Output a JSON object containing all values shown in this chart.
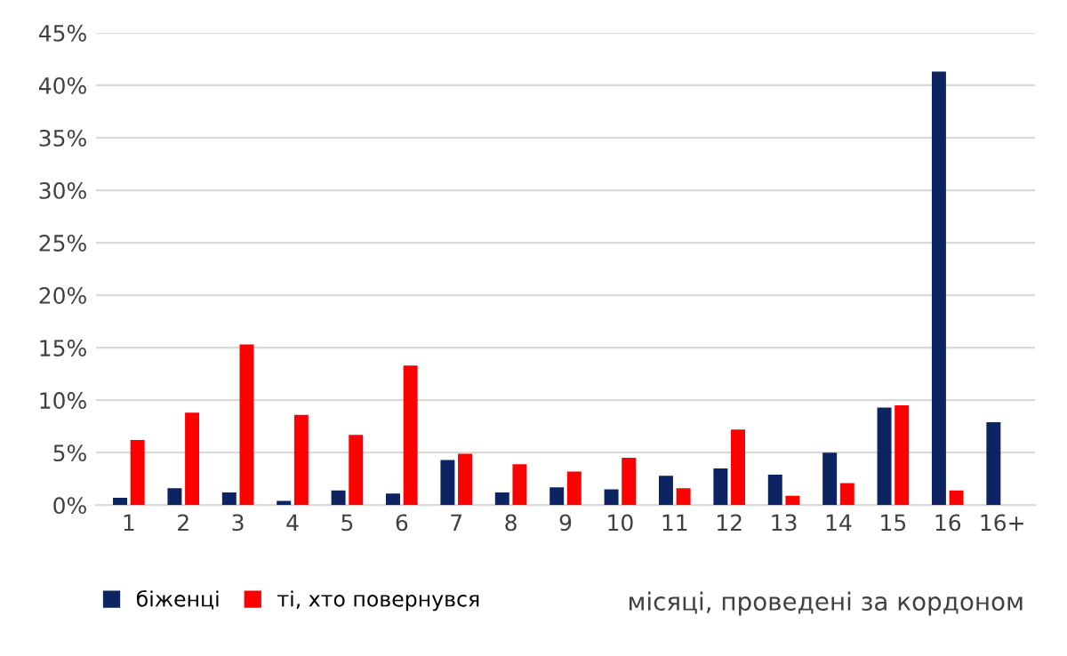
{
  "chart_data": {
    "type": "bar",
    "xlabel": "місяці, проведені за кордоном",
    "categories": [
      "1",
      "2",
      "3",
      "4",
      "5",
      "6",
      "7",
      "8",
      "9",
      "10",
      "11",
      "12",
      "13",
      "14",
      "15",
      "16",
      "16+"
    ],
    "series": [
      {
        "name": "біженці",
        "color": "#0c2461",
        "values": [
          0.7,
          1.6,
          1.2,
          0.4,
          1.4,
          1.1,
          4.3,
          1.2,
          1.7,
          1.5,
          2.8,
          3.5,
          2.9,
          5.0,
          9.3,
          41.3,
          7.9
        ]
      },
      {
        "name": "ті, хто повернувся",
        "color": "#ff0000",
        "values": [
          6.2,
          8.8,
          15.3,
          8.6,
          6.7,
          13.3,
          4.9,
          3.9,
          3.2,
          4.5,
          1.6,
          7.2,
          0.9,
          2.1,
          9.5,
          1.4,
          null
        ]
      }
    ],
    "ylim": [
      0,
      45
    ],
    "yticks": [
      {
        "value": 0,
        "label": "0%"
      },
      {
        "value": 5,
        "label": "5%"
      },
      {
        "value": 10,
        "label": "10%"
      },
      {
        "value": 15,
        "label": "15%"
      },
      {
        "value": 20,
        "label": "20%"
      },
      {
        "value": 25,
        "label": "25%"
      },
      {
        "value": 30,
        "label": "30%"
      },
      {
        "value": 35,
        "label": "35%"
      },
      {
        "value": 40,
        "label": "40%"
      },
      {
        "value": 45,
        "label": "45%"
      }
    ],
    "grid": "y",
    "legend": "bottom left"
  }
}
